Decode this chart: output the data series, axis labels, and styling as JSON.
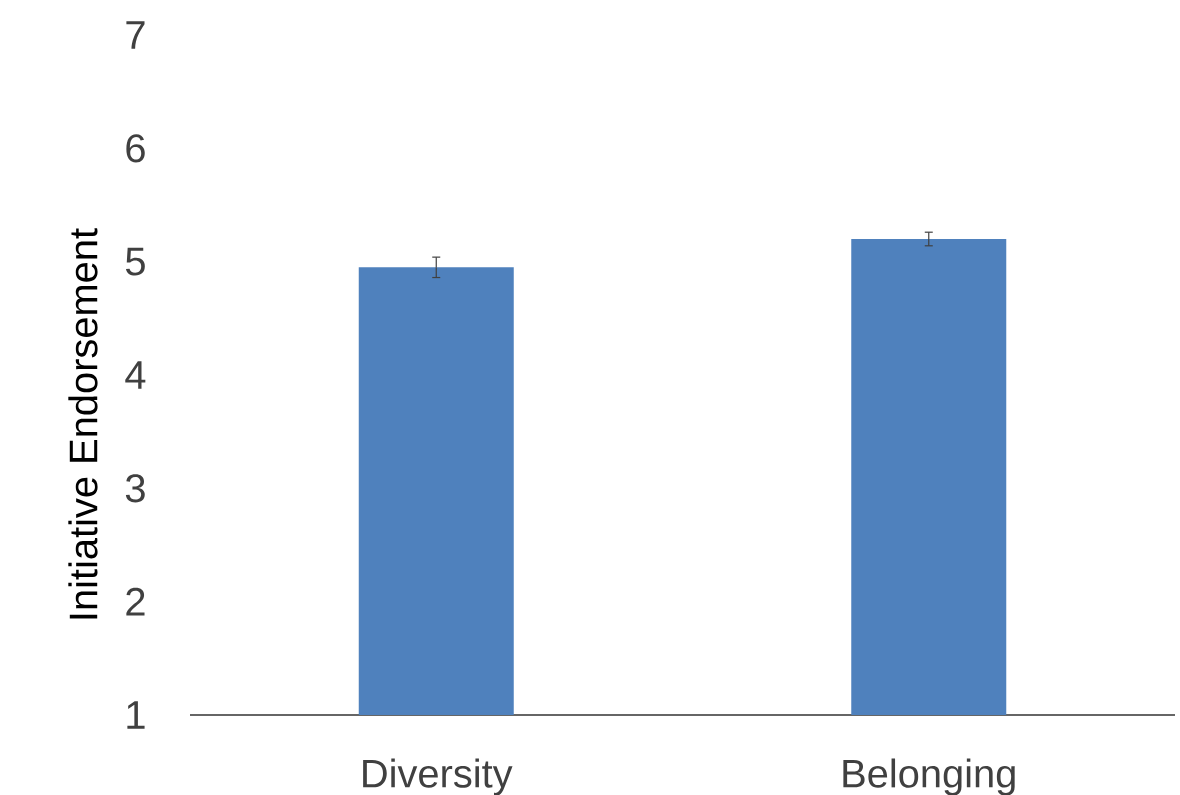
{
  "chart_data": {
    "type": "bar",
    "ylabel": "Initiative Endorsement",
    "categories": [
      "Diversity",
      "Belonging"
    ],
    "values": [
      4.95,
      5.2
    ],
    "errors": [
      0.09,
      0.06
    ],
    "color": "#4f81bd",
    "ylim": [
      1,
      7
    ],
    "yticks": [
      1,
      2,
      3,
      4,
      5,
      6,
      7
    ]
  }
}
